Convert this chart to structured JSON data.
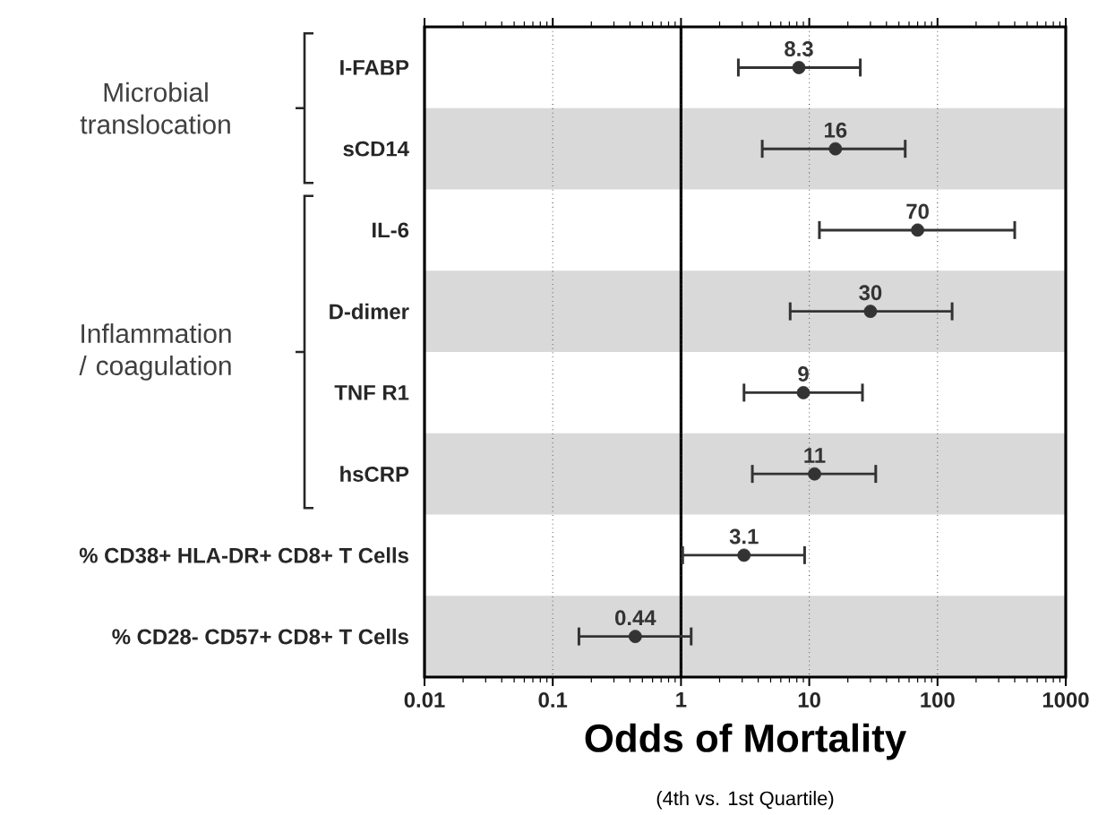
{
  "chart_data": {
    "type": "scatter",
    "orientation": "horizontal",
    "log": "x",
    "xlabel": "Odds of Mortality",
    "categories": [
      "I-FABP",
      "sCD14",
      "IL-6",
      "D-dimer",
      "TNF R1",
      "hsCRP",
      "% CD38+ HLA-DR+ CD8+ T Cells",
      "% CD28- CD57+ CD8+ T Cells"
    ],
    "values": [
      8.3,
      16,
      70,
      30,
      9,
      11,
      3.1,
      0.44
    ],
    "errors": [
      [
        2.8,
        25
      ],
      [
        4.3,
        56
      ],
      [
        12,
        400
      ],
      [
        7.1,
        130
      ],
      [
        3.1,
        26
      ],
      [
        3.6,
        33
      ],
      [
        1.03,
        9.2
      ],
      [
        0.16,
        1.2
      ]
    ],
    "color": "#333333",
    "marker": "circle",
    "data_labels": true,
    "xlim": [
      0.01,
      1000
    ],
    "xticks": [
      0.01,
      0.1,
      1,
      10,
      100,
      1000
    ],
    "grid": "x",
    "ref_lines": [
      {
        "axis": "x",
        "value": 1,
        "color": "#000000"
      }
    ],
    "annotations": [
      "Microbial translocation",
      "Inflammation / coagulation",
      "(4th vs. 1st Quartile)"
    ]
  }
}
